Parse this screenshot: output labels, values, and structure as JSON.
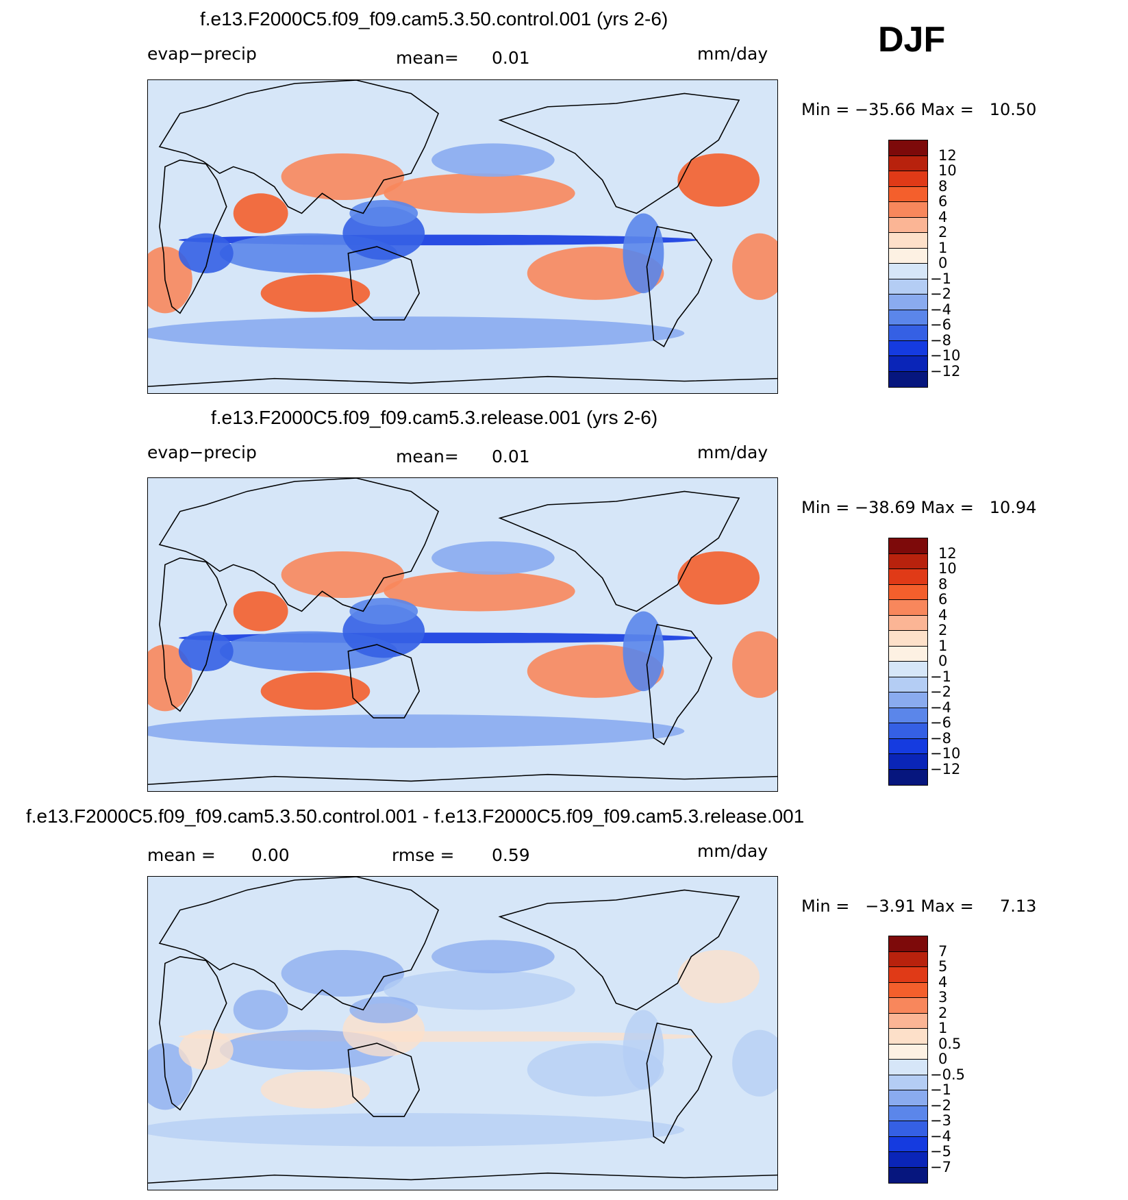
{
  "season": "DJF",
  "panels": [
    {
      "title": "f.e13.F2000C5.f09_f09.cam5.3.50.control.001 (yrs 2-6)",
      "left_label": "evap−precip",
      "mid_label": "mean=",
      "mid_value": "0.01",
      "units": "mm/day",
      "min_label": "Min",
      "min_value": "−35.66",
      "max_label": "Max",
      "max_value": "10.50",
      "colorbar_ticks": [
        "12",
        "10",
        "8",
        "6",
        "4",
        "2",
        "1",
        "0",
        "−1",
        "−2",
        "−4",
        "−6",
        "−8",
        "−10",
        "−12"
      ]
    },
    {
      "title": "f.e13.F2000C5.f09_f09.cam5.3.release.001 (yrs 2-6)",
      "left_label": "evap−precip",
      "mid_label": "mean=",
      "mid_value": "0.01",
      "units": "mm/day",
      "min_label": "Min",
      "min_value": "−38.69",
      "max_label": "Max",
      "max_value": "10.94",
      "colorbar_ticks": [
        "12",
        "10",
        "8",
        "6",
        "4",
        "2",
        "1",
        "0",
        "−1",
        "−2",
        "−4",
        "−6",
        "−8",
        "−10",
        "−12"
      ]
    },
    {
      "title": "f.e13.F2000C5.f09_f09.cam5.3.50.control.001 - f.e13.F2000C5.f09_f09.cam5.3.release.001",
      "left_label": "mean =",
      "left_value": "0.00",
      "mid_label": "rmse =",
      "mid_value": "0.59",
      "units": "mm/day",
      "min_label": "Min",
      "min_value": "−3.91",
      "max_label": "Max",
      "max_value": "7.13",
      "colorbar_ticks": [
        "7",
        "5",
        "4",
        "3",
        "2",
        "1",
        "0.5",
        "0",
        "−0.5",
        "−1",
        "−2",
        "−3",
        "−4",
        "−5",
        "−7"
      ]
    }
  ],
  "colors": {
    "palette": [
      "#7d0a0a",
      "#b8220d",
      "#e03a17",
      "#f45f2c",
      "#f8875c",
      "#fbb595",
      "#fde0c9",
      "#fdf1e3",
      "#d6e6f8",
      "#b4cdf4",
      "#8aabef",
      "#5b86ea",
      "#3560e4",
      "#153be0",
      "#0a25b8",
      "#06167e"
    ]
  }
}
